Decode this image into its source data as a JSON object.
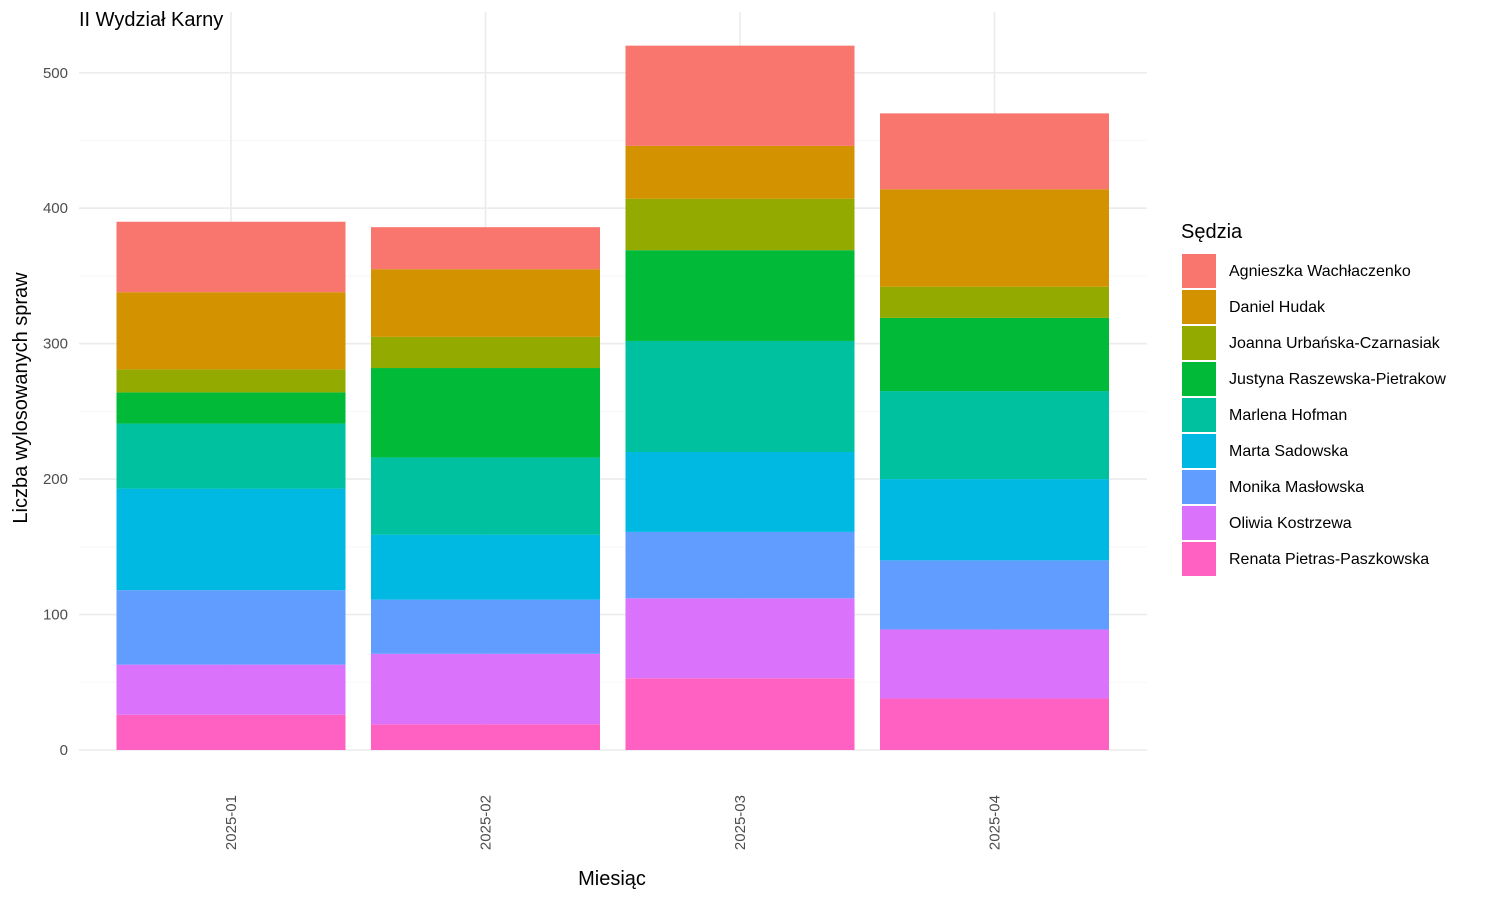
{
  "chart_data": {
    "type": "bar",
    "stacked": true,
    "title": "II Wydział Karny",
    "xlabel": "Miesiąc",
    "ylabel": "Liczba wylosowanych spraw",
    "categories": [
      "2025-01",
      "2025-02",
      "2025-03",
      "2025-04"
    ],
    "ylim": [
      0,
      530
    ],
    "yticks": [
      0,
      100,
      200,
      300,
      400,
      500
    ],
    "grid": true,
    "legend": {
      "title": "Sędzia",
      "position": "right"
    },
    "series": [
      {
        "name": "Renata Pietras-Paszkowska",
        "color": "#FF61C3",
        "values": [
          26,
          19,
          53,
          38
        ]
      },
      {
        "name": "Oliwia Kostrzewa",
        "color": "#DB72FB",
        "values": [
          37,
          52,
          59,
          51
        ]
      },
      {
        "name": "Monika Masłowska",
        "color": "#619CFF",
        "values": [
          55,
          40,
          49,
          51
        ]
      },
      {
        "name": "Marta Sadowska",
        "color": "#00B9E3",
        "values": [
          75,
          48,
          59,
          60
        ]
      },
      {
        "name": "Marlena Hofman",
        "color": "#00C19F",
        "values": [
          48,
          57,
          82,
          65
        ]
      },
      {
        "name": "Justyna Raszewska-Pietrakow",
        "color": "#00BA38",
        "values": [
          23,
          66,
          67,
          54
        ]
      },
      {
        "name": "Joanna Urbańska-Czarnasiak",
        "color": "#93AA00",
        "values": [
          17,
          23,
          38,
          23
        ]
      },
      {
        "name": "Daniel Hudak",
        "color": "#D39200",
        "values": [
          57,
          50,
          39,
          72
        ]
      },
      {
        "name": "Agnieszka Wachłaczenko",
        "color": "#F8766D",
        "values": [
          52,
          31,
          74,
          56
        ]
      }
    ]
  }
}
